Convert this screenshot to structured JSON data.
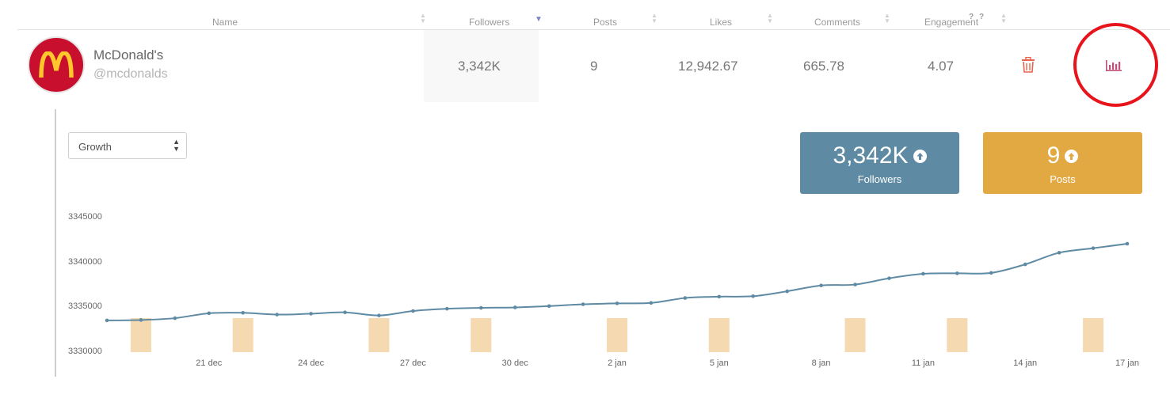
{
  "table": {
    "headers": {
      "name": "Name",
      "followers": "Followers",
      "posts": "Posts",
      "likes": "Likes",
      "comments": "Comments",
      "engagement": "Engagement",
      "q1": "?",
      "q2": "?"
    },
    "row": {
      "name": "McDonald's",
      "handle": "@mcdonalds",
      "followers": "3,342K",
      "posts": "9",
      "likes": "12,942.67",
      "comments": "665.78",
      "engagement": "4.07"
    }
  },
  "panel": {
    "metric_select": "Growth",
    "stats": {
      "followers_value": "3,342K",
      "followers_label": "Followers",
      "posts_value": "9",
      "posts_label": "Posts"
    }
  },
  "colors": {
    "line": "#5e8ba3",
    "bars": "#f5d9b0",
    "followers_card": "#5e8ba3",
    "posts_card": "#e2a943",
    "highlight_circle": "#e8141c",
    "trash": "#e8644c",
    "chart_icon": "#c0507a"
  },
  "icons": [
    "sort-icon",
    "mcdonalds-logo",
    "trash-icon",
    "bar-chart-icon",
    "arrow-up-circle-icon",
    "select-arrows-icon"
  ],
  "chart_data": {
    "type": "line",
    "ylim": [
      3330000,
      3345000
    ],
    "y_ticks": [
      "3345000",
      "3340000",
      "3335000",
      "3330000"
    ],
    "x_ticks": [
      "21 dec",
      "24 dec",
      "27 dec",
      "30 dec",
      "2 jan",
      "5 jan",
      "8 jan",
      "11 jan",
      "14 jan",
      "17 jan"
    ],
    "series": [
      {
        "values": [
          3333450,
          3333500,
          3333700,
          3334250,
          3334300,
          3334100,
          3334200,
          3334350,
          3334000,
          3334500,
          3334750,
          3334850,
          3334900,
          3335050,
          3335250,
          3335350,
          3335400,
          3335950,
          3336100,
          3336150,
          3336700,
          3337350,
          3337450,
          3338150,
          3338650,
          3338700,
          3338750,
          3339700,
          3341000,
          3341500,
          3342000
        ]
      }
    ],
    "post_bars_at_index": [
      1,
      4,
      8,
      11,
      15,
      18,
      22,
      25,
      29
    ]
  }
}
